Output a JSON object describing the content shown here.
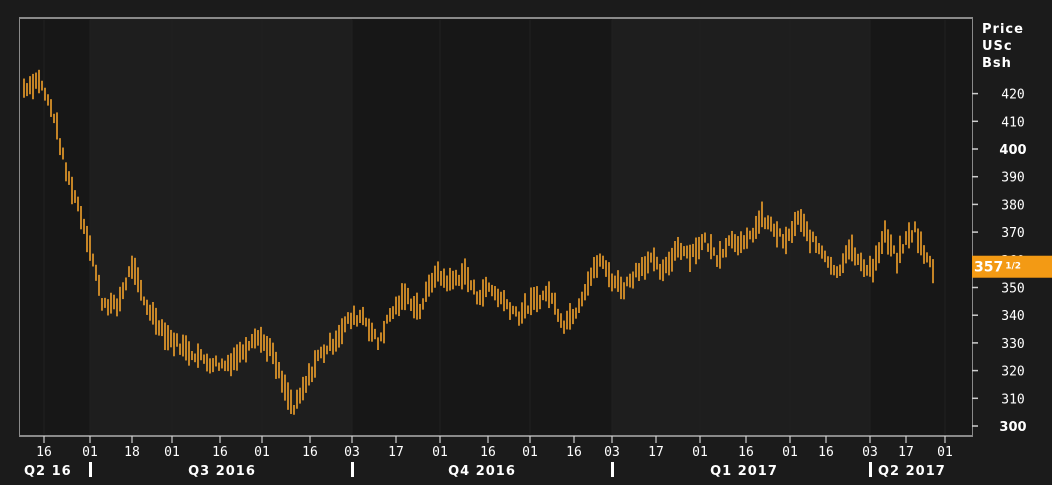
{
  "chart_data": {
    "type": "ohlc",
    "ylabel": [
      "Price",
      "USc",
      "Bsh"
    ],
    "ylim": [
      298,
      432
    ],
    "y_ticks": [
      300,
      310,
      320,
      330,
      340,
      350,
      360,
      370,
      380,
      390,
      400,
      410,
      420
    ],
    "y_ticks_bold": [
      300,
      400
    ],
    "last_price": {
      "value": 357.5,
      "whole": "357",
      "fraction": "1/2"
    },
    "date_ticks": [
      "16",
      "01",
      "18",
      "01",
      "16",
      "01",
      "16",
      "03",
      "17",
      "01",
      "16",
      "01",
      "16",
      "03",
      "17",
      "01",
      "16",
      "01",
      "16",
      "03",
      "17",
      "01"
    ],
    "quarters": [
      "Q2 16",
      "Q3 2016",
      "Q4 2016",
      "Q1 2017",
      "Q2 2017"
    ],
    "trend_points": [
      [
        0,
        422
      ],
      [
        5,
        425
      ],
      [
        10,
        412
      ],
      [
        14,
        392
      ],
      [
        18,
        380
      ],
      [
        22,
        365
      ],
      [
        26,
        345
      ],
      [
        31,
        343
      ],
      [
        36,
        358
      ],
      [
        40,
        345
      ],
      [
        48,
        332
      ],
      [
        55,
        327
      ],
      [
        62,
        323
      ],
      [
        67,
        322
      ],
      [
        72,
        326
      ],
      [
        77,
        333
      ],
      [
        82,
        328
      ],
      [
        87,
        313
      ],
      [
        90,
        306
      ],
      [
        94,
        315
      ],
      [
        98,
        325
      ],
      [
        103,
        330
      ],
      [
        108,
        338
      ],
      [
        113,
        340
      ],
      [
        118,
        330
      ],
      [
        122,
        340
      ],
      [
        127,
        347
      ],
      [
        132,
        342
      ],
      [
        137,
        355
      ],
      [
        142,
        352
      ],
      [
        147,
        355
      ],
      [
        151,
        347
      ],
      [
        155,
        350
      ],
      [
        160,
        345
      ],
      [
        165,
        340
      ],
      [
        170,
        345
      ],
      [
        175,
        348
      ],
      [
        180,
        337
      ],
      [
        184,
        342
      ],
      [
        188,
        352
      ],
      [
        192,
        360
      ],
      [
        196,
        353
      ],
      [
        200,
        350
      ],
      [
        205,
        357
      ],
      [
        209,
        360
      ],
      [
        213,
        355
      ],
      [
        218,
        365
      ],
      [
        222,
        362
      ],
      [
        227,
        367
      ],
      [
        231,
        361
      ],
      [
        236,
        368
      ],
      [
        240,
        365
      ],
      [
        246,
        375
      ],
      [
        250,
        371
      ],
      [
        254,
        366
      ],
      [
        258,
        375
      ],
      [
        262,
        368
      ],
      [
        267,
        362
      ],
      [
        271,
        355
      ],
      [
        275,
        365
      ],
      [
        279,
        358
      ],
      [
        283,
        357
      ],
      [
        287,
        369
      ],
      [
        291,
        360
      ],
      [
        294,
        367
      ],
      [
        297,
        371
      ],
      [
        300,
        362
      ],
      [
        303,
        357
      ]
    ]
  }
}
